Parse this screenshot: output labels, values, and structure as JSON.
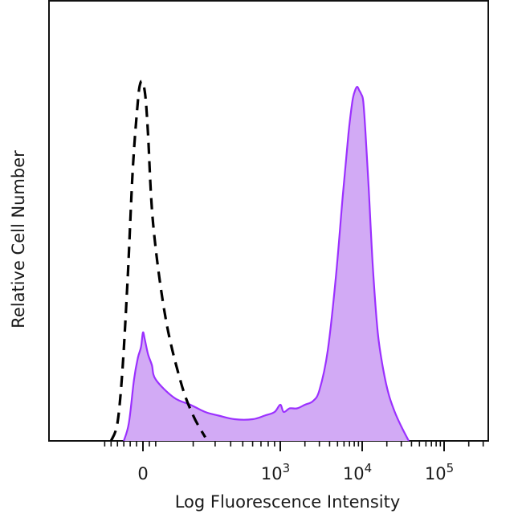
{
  "chart_data": {
    "type": "area",
    "xlabel": "Log Fluorescence Intensity",
    "ylabel": "Relative Cell Number",
    "x_scale": "biexponential",
    "xlim": [
      -400,
      300000
    ],
    "ylim": [
      0,
      100
    ],
    "grid": false,
    "legend": "none",
    "ticks": [
      {
        "value": 0,
        "base": "0",
        "exp": ""
      },
      {
        "value": 1000,
        "base": "10",
        "exp": "3"
      },
      {
        "value": 10000,
        "base": "10",
        "exp": "4"
      },
      {
        "value": 100000,
        "base": "10",
        "exp": "5"
      }
    ],
    "series": [
      {
        "style": "dashed",
        "color": "#000000",
        "x": [
          -250,
          -200,
          -160,
          -120,
          -80,
          -40,
          -20,
          0,
          20,
          40,
          80,
          120,
          160,
          200,
          250
        ],
        "y": [
          0,
          5,
          20,
          45,
          75,
          94,
          99,
          99,
          95,
          85,
          60,
          34,
          16,
          7,
          1
        ]
      },
      {
        "style": "filled",
        "color": "#9b30ff",
        "fill": "#d2aaf5",
        "x": [
          -150,
          -110,
          -70,
          -40,
          -15,
          0,
          15,
          40,
          70,
          100,
          140,
          190,
          250,
          320,
          430,
          600,
          750,
          900,
          1000,
          1100,
          1300,
          1600,
          2000,
          2500,
          3000,
          3800,
          4800,
          5800,
          6800,
          7600,
          8200,
          8700,
          9200,
          9700,
          10300,
          11000,
          12000,
          13500,
          15500,
          18000,
          21000,
          25000,
          30000,
          37000
        ],
        "y": [
          0,
          5,
          17,
          23,
          26,
          30,
          28,
          24,
          21,
          17,
          12,
          10,
          8,
          7,
          6,
          6,
          7,
          8,
          10,
          8,
          9,
          9,
          10,
          11,
          14,
          25,
          46,
          68,
          85,
          94,
          97,
          98,
          97,
          96,
          94,
          85,
          70,
          48,
          30,
          20,
          13,
          8,
          4,
          0
        ]
      }
    ]
  }
}
